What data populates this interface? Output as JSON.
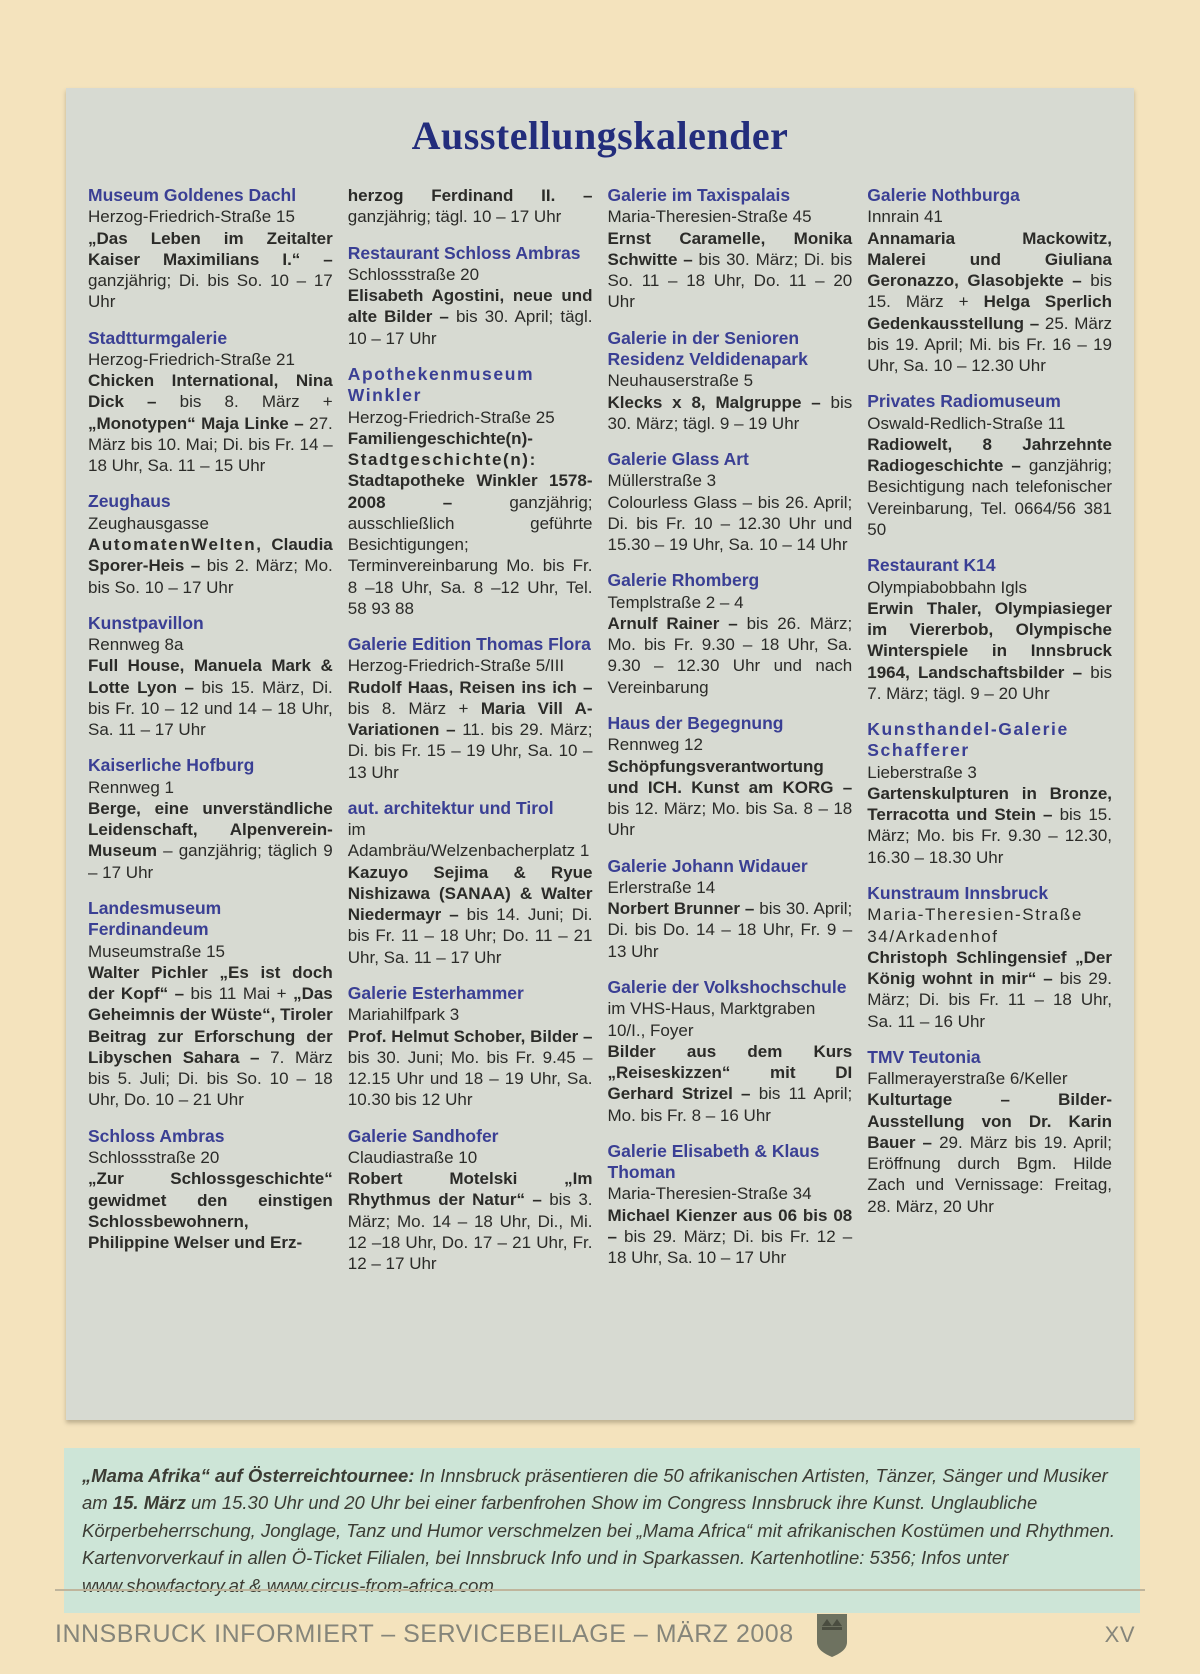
{
  "page": {
    "title": "Ausstellungskalender",
    "footer": {
      "left": "INNSBRUCK INFORMIERT – SERVICEBEILAGE – MÄRZ 2008",
      "page_number": "XV",
      "logo": "innsbruck-coat-of-arms"
    },
    "colors": {
      "page_bg": "#f4e3bd",
      "panel_bg": "#d7dad2",
      "title": "#232d7c",
      "heading": "#3a3f94",
      "body_text": "#2b2b28",
      "notice_bg": "#cde5d7",
      "footer_text": "#85857a"
    }
  },
  "calendar": {
    "columns": [
      {
        "sections": [
          {
            "heading": "Museum Goldenes Dachl",
            "address": "Herzog-Friedrich-Straße 15",
            "runs": [
              {
                "b": true,
                "t": "„Das Leben im Zeitalter Kaiser Maximilians I.“ – "
              },
              {
                "b": false,
                "t": "ganzjährig; Di. bis So. 10 – 17 Uhr"
              }
            ]
          },
          {
            "heading": "Stadtturmgalerie",
            "address": "Herzog-Friedrich-Straße 21",
            "runs": [
              {
                "b": true,
                "t": "Chicken International, Nina Dick – "
              },
              {
                "b": false,
                "t": "bis 8. März + "
              },
              {
                "b": true,
                "t": "„Monotypen“ Maja Linke – "
              },
              {
                "b": false,
                "t": "27. März bis 10. Mai; Di. bis Fr. 14 – 18 Uhr, Sa. 11 – 15 Uhr"
              }
            ]
          },
          {
            "heading": "Zeughaus",
            "address": "Zeughausgasse",
            "runs": [
              {
                "b": true,
                "ls": true,
                "t": "AutomatenWelten, "
              },
              {
                "b": true,
                "t": "Claudia Sporer-Heis – "
              },
              {
                "b": false,
                "t": "bis 2. März; Mo. bis So. 10 – 17 Uhr"
              }
            ]
          },
          {
            "heading": "Kunstpavillon",
            "address": "Rennweg 8a",
            "runs": [
              {
                "b": true,
                "t": "Full House, Manuela Mark & Lotte Lyon – "
              },
              {
                "b": false,
                "t": "bis 15. März, Di. bis Fr. 10 – 12 und 14 – 18 Uhr, Sa. 11 – 17 Uhr"
              }
            ]
          },
          {
            "heading": "Kaiserliche Hofburg",
            "address": "Rennweg 1",
            "runs": [
              {
                "b": true,
                "t": "Berge, eine unverständliche Leidenschaft, Alpenverein-Museum "
              },
              {
                "b": false,
                "t": "– ganzjährig; täglich 9 – 17 Uhr"
              }
            ]
          },
          {
            "heading": "Landesmuseum Ferdinandeum",
            "address": "Museumstraße 15",
            "runs": [
              {
                "b": true,
                "t": "Walter Pichler „Es ist doch der Kopf“ – "
              },
              {
                "b": false,
                "t": "bis 11 Mai + "
              },
              {
                "b": true,
                "t": "„Das Geheimnis der Wüste“, Tiroler Beitrag zur Erforschung der Libyschen Sahara – "
              },
              {
                "b": false,
                "t": "7. März bis 5. Juli; Di. bis So. 10 – 18 Uhr, Do. 10 – 21 Uhr"
              }
            ]
          },
          {
            "heading": "Schloss Ambras",
            "address": "Schlossstraße 20",
            "runs": [
              {
                "b": true,
                "t": "„Zur Schlossgeschichte“ gewidmet den einstigen Schlossbewohnern, Philippine Welser und Erz-"
              }
            ]
          }
        ]
      },
      {
        "sections": [
          {
            "runs": [
              {
                "b": true,
                "t": "herzog Ferdinand II. – "
              },
              {
                "b": false,
                "t": "ganzjährig; tägl. 10 – 17 Uhr"
              }
            ]
          },
          {
            "heading": "Restaurant Schloss Ambras",
            "address": "Schlossstraße 20",
            "runs": [
              {
                "b": true,
                "t": "Elisabeth Agostini, neue und alte Bilder – "
              },
              {
                "b": false,
                "t": "bis 30. April; tägl. 10 – 17 Uhr"
              }
            ]
          },
          {
            "heading": "Apothekenmuseum Winkler",
            "heading_ls": true,
            "address": "Herzog-Friedrich-Straße 25",
            "runs": [
              {
                "b": true,
                "t": "Familiengeschichte(n)- "
              },
              {
                "b": true,
                "ls": true,
                "t": "Stadtgeschichte(n): "
              },
              {
                "b": true,
                "t": "Stadtapotheke Winkler 1578-2008 – "
              },
              {
                "b": false,
                "t": "ganzjährig; ausschließlich geführte Besichtigungen; Terminvereinbarung Mo. bis Fr. 8 –18 Uhr, Sa. 8 –12 Uhr, Tel. 58 93 88"
              }
            ]
          },
          {
            "heading": "Galerie Edition Thomas Flora",
            "address": "Herzog-Friedrich-Straße 5/III",
            "runs": [
              {
                "b": true,
                "t": "Rudolf Haas, Reisen ins ich – "
              },
              {
                "b": false,
                "t": "bis 8. März + "
              },
              {
                "b": true,
                "t": "Maria Vill A-Variationen – "
              },
              {
                "b": false,
                "t": "11. bis 29. März; Di. bis Fr. 15 – 19 Uhr, Sa. 10 – 13 Uhr"
              }
            ]
          },
          {
            "heading": "aut. architektur und Tirol",
            "address": "im Adambräu/Welzenbacherplatz 1",
            "runs": [
              {
                "b": true,
                "t": "Kazuyo Sejima & Ryue Nishizawa (SANAA) & Walter Niedermayr – "
              },
              {
                "b": false,
                "t": "bis 14. Juni; Di. bis Fr. 11 – 18 Uhr; Do. 11 – 21 Uhr, Sa. 11 – 17 Uhr"
              }
            ]
          },
          {
            "heading": "Galerie Esterhammer",
            "address": "Mariahilfpark 3",
            "runs": [
              {
                "b": true,
                "t": "Prof. Helmut Schober, Bilder – "
              },
              {
                "b": false,
                "t": "bis 30. Juni; Mo. bis Fr. 9.45 – 12.15 Uhr und 18 – 19 Uhr, Sa. 10.30 bis 12 Uhr"
              }
            ]
          },
          {
            "heading": "Galerie Sandhofer",
            "address": "Claudiastraße 10",
            "runs": [
              {
                "b": true,
                "t": "Robert Motelski „Im Rhythmus der Natur“ – "
              },
              {
                "b": false,
                "t": "bis 3. März; Mo. 14 – 18 Uhr, Di., Mi. 12 –18 Uhr, Do. 17 – 21 Uhr, Fr. 12 – 17 Uhr"
              }
            ]
          }
        ]
      },
      {
        "sections": [
          {
            "heading": "Galerie im Taxispalais",
            "address": "Maria-Theresien-Straße 45",
            "runs": [
              {
                "b": true,
                "t": "Ernst Caramelle, Monika Schwitte – "
              },
              {
                "b": false,
                "t": "bis 30. März; Di. bis So. 11 – 18 Uhr, Do. 11 – 20 Uhr"
              }
            ]
          },
          {
            "heading": "Galerie in der Senioren Residenz Veldidenapark",
            "address": "Neuhauserstraße 5",
            "runs": [
              {
                "b": true,
                "t": "Klecks x 8, Malgruppe – "
              },
              {
                "b": false,
                "t": "bis 30. März; tägl. 9 – 19 Uhr"
              }
            ]
          },
          {
            "heading": "Galerie Glass Art",
            "address": "Müllerstraße 3",
            "runs": [
              {
                "b": false,
                "t": "Colourless Glass – bis 26. April; Di. bis Fr. 10 – 12.30 Uhr und 15.30 – 19 Uhr, Sa. 10 – 14 Uhr"
              }
            ]
          },
          {
            "heading": "Galerie Rhomberg",
            "address": "Templstraße 2 – 4",
            "runs": [
              {
                "b": true,
                "t": "Arnulf Rainer – "
              },
              {
                "b": false,
                "t": "bis 26. März; Mo. bis Fr. 9.30 – 18 Uhr, Sa. 9.30 – 12.30 Uhr und nach Vereinbarung"
              }
            ]
          },
          {
            "heading": "Haus der Begegnung",
            "address": "Rennweg 12",
            "runs": [
              {
                "b": true,
                "t": "Schöpfungsverantwortung und ICH. Kunst am KORG – "
              },
              {
                "b": false,
                "t": "bis 12. März; Mo. bis Sa. 8 – 18 Uhr"
              }
            ]
          },
          {
            "heading": "Galerie Johann Widauer",
            "address": "Erlerstraße 14",
            "runs": [
              {
                "b": true,
                "t": "Norbert Brunner – "
              },
              {
                "b": false,
                "t": "bis 30. April; Di. bis Do. 14 – 18 Uhr, Fr. 9 – 13 Uhr"
              }
            ]
          },
          {
            "heading": "Galerie der Volkshochschule",
            "address": "im VHS-Haus, Marktgraben 10/I., Foyer",
            "runs": [
              {
                "b": true,
                "t": "Bilder aus dem Kurs „Reiseskizzen“ mit DI Gerhard Strizel – "
              },
              {
                "b": false,
                "t": "bis 11 April; Mo. bis Fr. 8 – 16 Uhr"
              }
            ]
          },
          {
            "heading": "Galerie Elisabeth & Klaus Thoman",
            "address": "Maria-Theresien-Straße 34",
            "runs": [
              {
                "b": true,
                "t": "Michael Kienzer aus 06 bis 08 – "
              },
              {
                "b": false,
                "t": "bis 29. März; Di. bis Fr. 12 – 18 Uhr, Sa. 10 – 17 Uhr"
              }
            ]
          }
        ]
      },
      {
        "sections": [
          {
            "heading": "Galerie Nothburga",
            "address": "Innrain 41",
            "runs": [
              {
                "b": true,
                "t": "Annamaria Mackowitz, Malerei und Giuliana Geronazzo, Glasobjekte – "
              },
              {
                "b": false,
                "t": "bis 15. März + "
              },
              {
                "b": true,
                "t": "Helga Sperlich Gedenkausstellung – "
              },
              {
                "b": false,
                "t": "25. März bis 19. April; Mi. bis Fr. 16 – 19 Uhr, Sa. 10 – 12.30 Uhr"
              }
            ]
          },
          {
            "heading": "Privates Radiomuseum",
            "address": "Oswald-Redlich-Straße 11",
            "runs": [
              {
                "b": true,
                "t": "Radiowelt, 8 Jahrzehnte Radiogeschichte – "
              },
              {
                "b": false,
                "t": "ganzjährig; Besichtigung nach telefonischer Vereinbarung, Tel. 0664/56 381 50"
              }
            ]
          },
          {
            "heading": "Restaurant K14",
            "address": "Olympiabobbahn Igls",
            "runs": [
              {
                "b": true,
                "t": "Erwin Thaler, Olympiasieger im Viererbob, Olympische Winterspiele in Innsbruck 1964, Landschaftsbilder – "
              },
              {
                "b": false,
                "t": "bis 7. März; tägl. 9 – 20 Uhr"
              }
            ]
          },
          {
            "heading": "Kunsthandel-Galerie Schafferer",
            "heading_ls": true,
            "address": "Lieberstraße 3",
            "runs": [
              {
                "b": true,
                "t": "Gartenskulpturen in Bronze, Terracotta und Stein – "
              },
              {
                "b": false,
                "t": "bis 15. März; Mo. bis Fr. 9.30 – 12.30, 16.30 – 18.30 Uhr"
              }
            ]
          },
          {
            "heading": "Kunstraum Innsbruck",
            "address": "Maria-Theresien-Straße 34/Arkadenhof",
            "address_ls": true,
            "runs": [
              {
                "b": true,
                "t": "Christoph Schlingensief „Der König wohnt in mir“ – "
              },
              {
                "b": false,
                "t": "bis 29. März; Di. bis Fr. 11 – 18 Uhr, Sa. 11 – 16 Uhr"
              }
            ]
          },
          {
            "heading": "TMV Teutonia",
            "address": "Fallmerayerstraße 6/Keller",
            "runs": [
              {
                "b": true,
                "t": "Kulturtage – Bilder-Ausstellung von Dr. Karin Bauer – "
              },
              {
                "b": false,
                "t": "29. März bis 19. April; Eröffnung durch Bgm. Hilde Zach und Vernissage: Freitag, 28. März, 20 Uhr"
              }
            ]
          }
        ]
      }
    ]
  },
  "notice": {
    "runs": [
      {
        "b": true,
        "t": "„Mama Afrika“ auf Österreichtournee: "
      },
      {
        "b": false,
        "t": "In Innsbruck präsentieren die 50 afrikanischen Artisten, Tänzer, Sänger und Musiker am "
      },
      {
        "b": true,
        "t": "15. März "
      },
      {
        "b": false,
        "t": "um 15.30 Uhr und 20 Uhr bei einer farbenfrohen Show im Congress Innsbruck ihre Kunst. Unglaubliche Körperbeherrschung, Jonglage, Tanz und Humor verschmelzen bei „Mama Africa“ mit afrikanischen Kostümen und Rhythmen. Kartenvorverkauf in allen Ö-Ticket Filialen, bei Innsbruck Info und in Sparkassen. Kartenhotline: 5356; Infos unter www.showfactory.at & www.circus-from-africa.com"
      }
    ]
  }
}
